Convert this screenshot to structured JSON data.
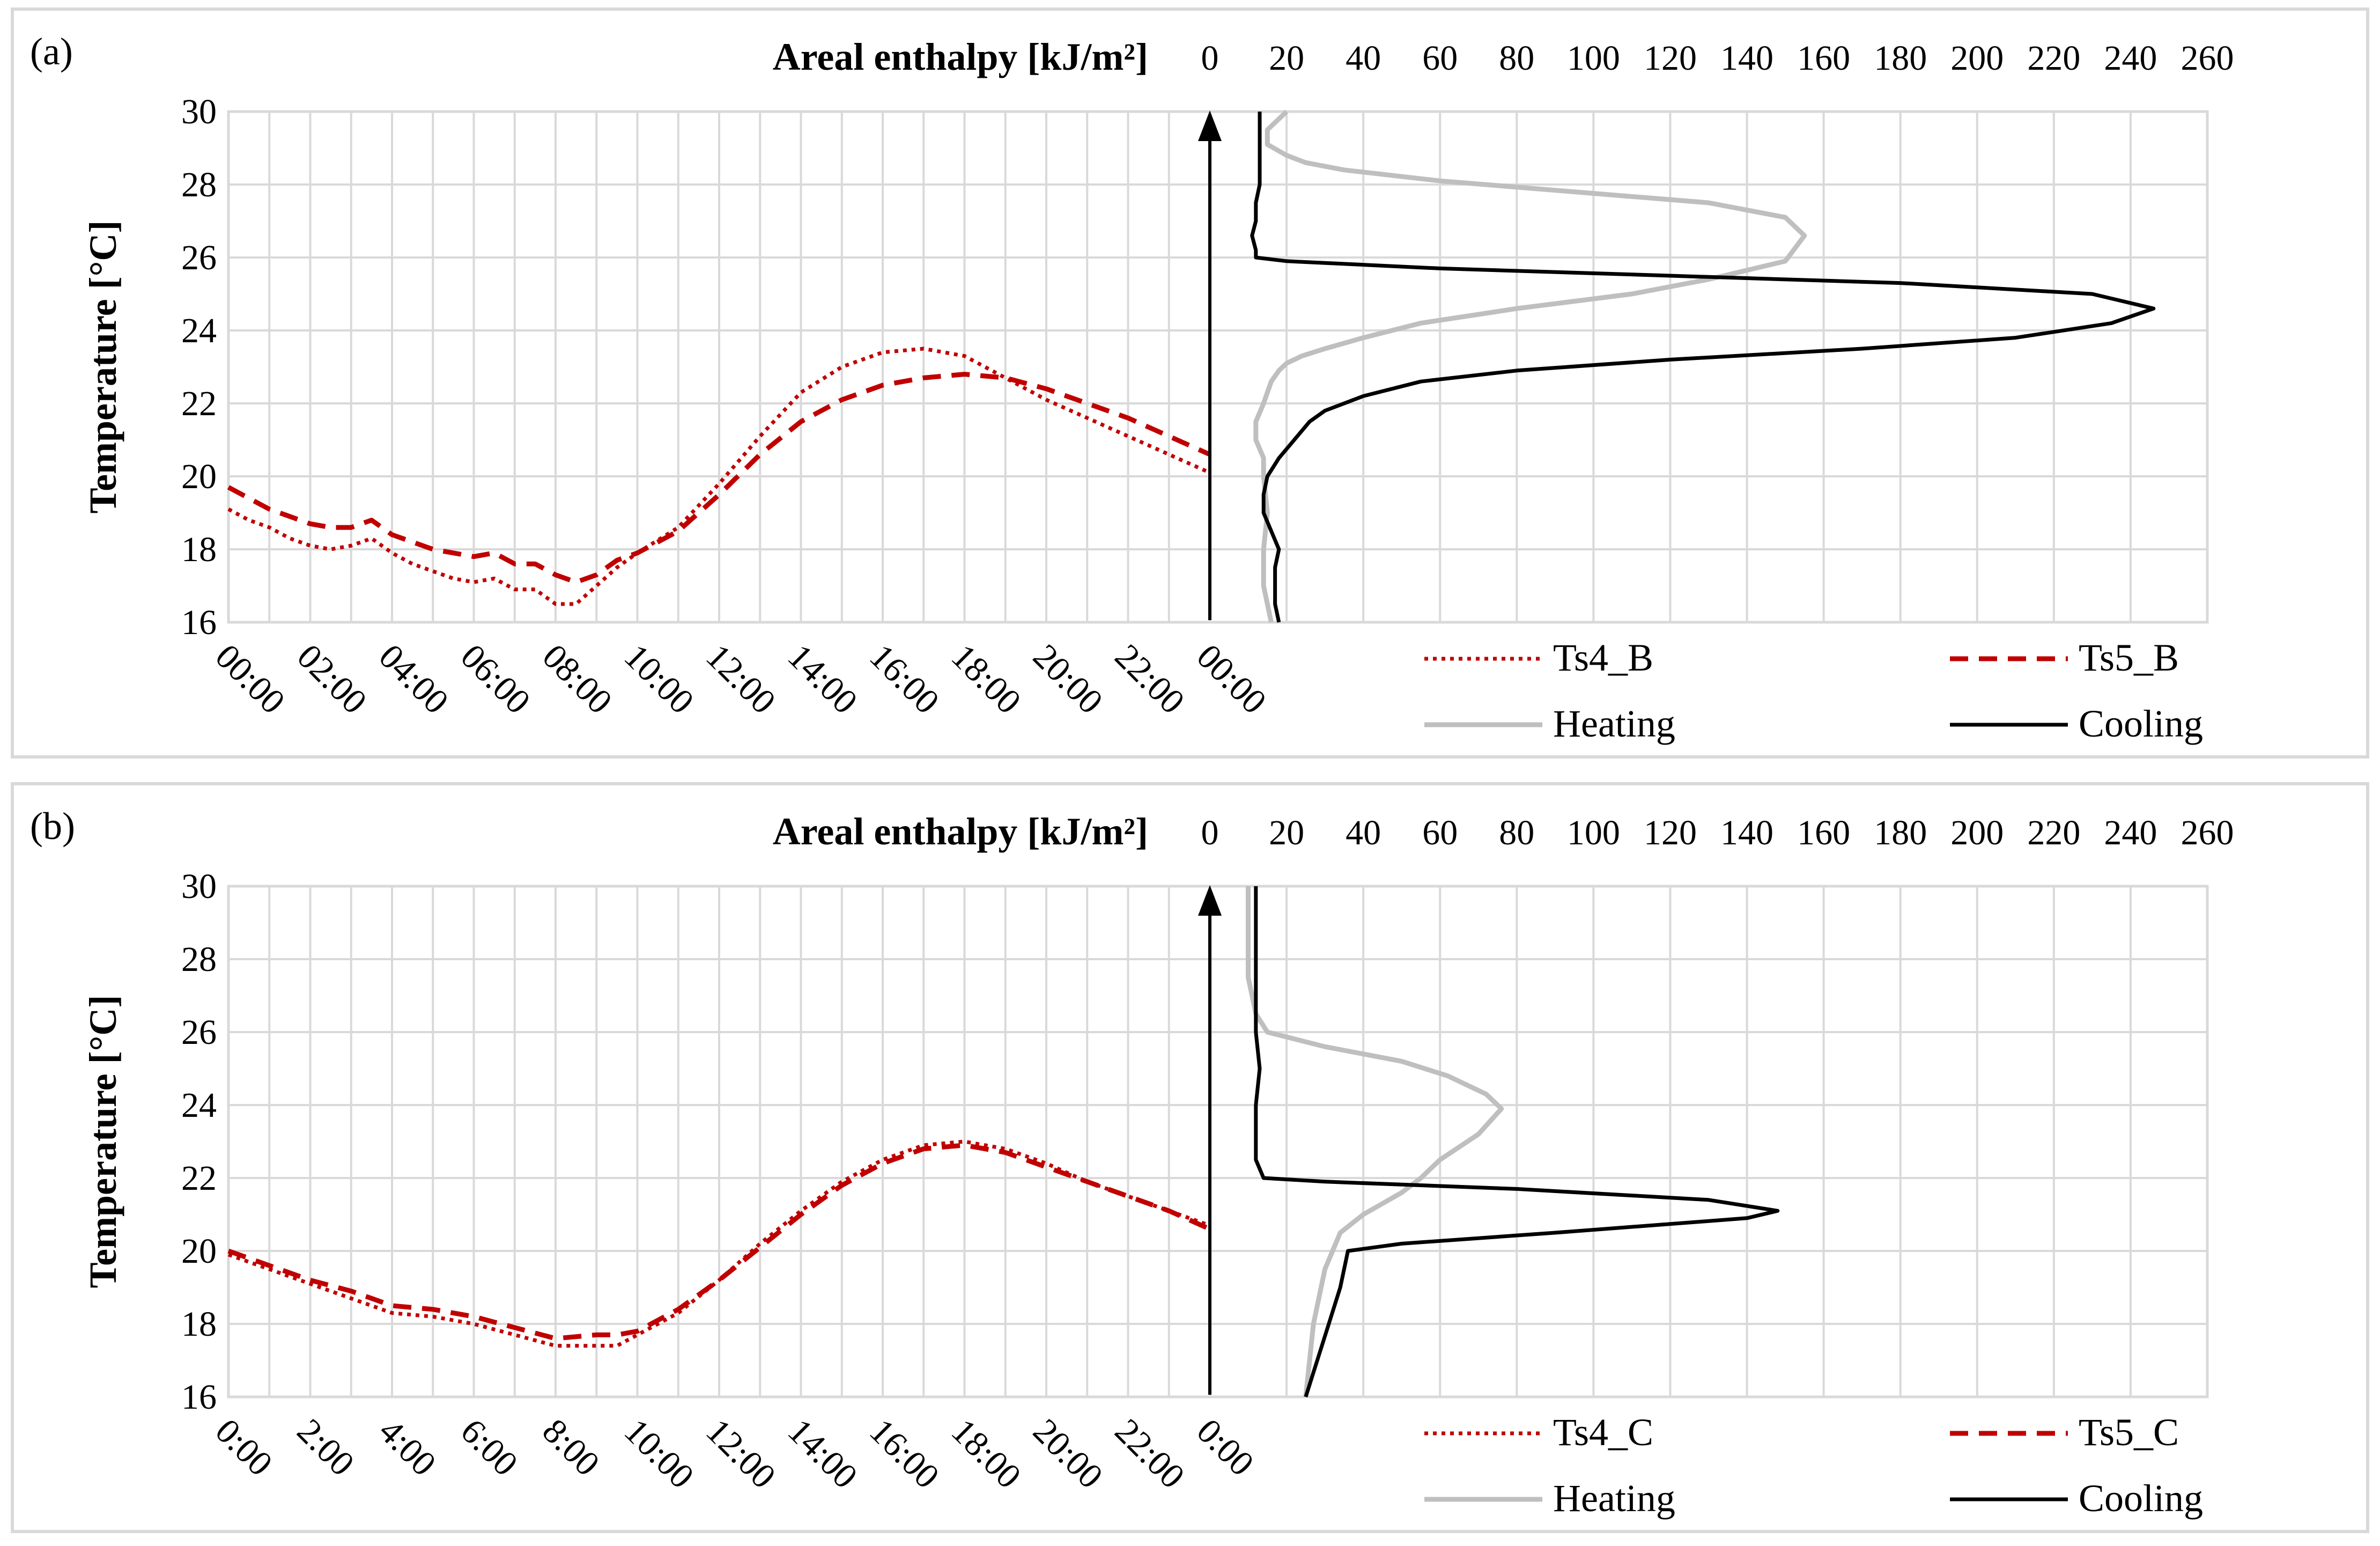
{
  "colors": {
    "ts4": "#c00000",
    "ts5": "#c00000",
    "heating": "#bfbfbf",
    "cooling": "#000000",
    "grid": "#d9d9d9"
  },
  "chart_data": [
    {
      "type": "line",
      "panel_label": "(a)",
      "ylabel": "Temperature [°C]",
      "ylim": [
        16,
        30
      ],
      "y_ticks": [
        "16",
        "18",
        "20",
        "22",
        "24",
        "26",
        "28",
        "30"
      ],
      "x_ticks": [
        "00:00",
        "02:00",
        "04:00",
        "06:00",
        "08:00",
        "10:00",
        "12:00",
        "14:00",
        "16:00",
        "18:00",
        "20:00",
        "22:00",
        "00:00"
      ],
      "enthalpy_label": "Areal enthalpy [kJ/m²]",
      "enthalpy_ticks": [
        "0",
        "20",
        "40",
        "60",
        "80",
        "100",
        "120",
        "140",
        "160",
        "180",
        "200",
        "220",
        "240",
        "260"
      ],
      "enthalpy_lim": [
        0,
        260
      ],
      "legend": [
        "Ts4_B",
        "Ts5_B",
        "Heating",
        "Cooling"
      ],
      "series": [
        {
          "name": "Ts4_B",
          "style": "dotted",
          "x": [
            0,
            0.5,
            1,
            1.5,
            2,
            2.5,
            3,
            3.5,
            4,
            4.5,
            5,
            5.5,
            6,
            6.5,
            7,
            7.5,
            8,
            8.5,
            9,
            9.5,
            10,
            11,
            12,
            13,
            14,
            15,
            16,
            17,
            18,
            19,
            20,
            21,
            22,
            23,
            24
          ],
          "y": [
            19.1,
            18.8,
            18.6,
            18.3,
            18.1,
            18.0,
            18.1,
            18.3,
            17.9,
            17.6,
            17.4,
            17.2,
            17.1,
            17.2,
            16.9,
            16.9,
            16.5,
            16.5,
            17.0,
            17.5,
            17.9,
            18.6,
            19.8,
            21.1,
            22.3,
            23.0,
            23.4,
            23.5,
            23.3,
            22.7,
            22.1,
            21.6,
            21.1,
            20.6,
            20.1
          ]
        },
        {
          "name": "Ts5_B",
          "style": "dashed",
          "x": [
            0,
            0.5,
            1,
            1.5,
            2,
            2.5,
            3,
            3.5,
            4,
            4.5,
            5,
            5.5,
            6,
            6.5,
            7,
            7.5,
            8,
            8.5,
            9,
            9.5,
            10,
            11,
            12,
            13,
            14,
            15,
            16,
            17,
            18,
            19,
            20,
            21,
            22,
            23,
            24
          ],
          "y": [
            19.7,
            19.4,
            19.1,
            18.9,
            18.7,
            18.6,
            18.6,
            18.8,
            18.4,
            18.2,
            18.0,
            17.9,
            17.8,
            17.9,
            17.6,
            17.6,
            17.3,
            17.1,
            17.3,
            17.7,
            17.9,
            18.5,
            19.5,
            20.6,
            21.5,
            22.1,
            22.5,
            22.7,
            22.8,
            22.7,
            22.4,
            22.0,
            21.6,
            21.1,
            20.6
          ]
        },
        {
          "name": "Heating",
          "axis": "enthalpy",
          "x": [
            16,
            14,
            14,
            15,
            14,
            14,
            12,
            12,
            14,
            15,
            16,
            18,
            20,
            24,
            30,
            40,
            55,
            80,
            110,
            130,
            150,
            155,
            150,
            130,
            95,
            60,
            35,
            25,
            20,
            15,
            15,
            18,
            20
          ],
          "y": [
            16,
            17,
            18,
            19,
            20,
            20.5,
            21,
            21.5,
            22,
            22.3,
            22.6,
            22.9,
            23.1,
            23.3,
            23.5,
            23.8,
            24.2,
            24.6,
            25.0,
            25.4,
            25.9,
            26.6,
            27.1,
            27.5,
            27.8,
            28.1,
            28.4,
            28.6,
            28.8,
            29.1,
            29.5,
            29.8,
            30
          ]
        },
        {
          "name": "Cooling",
          "axis": "enthalpy",
          "x": [
            18,
            17,
            17,
            17,
            18,
            16,
            14,
            14,
            15,
            18,
            22,
            26,
            30,
            40,
            55,
            80,
            120,
            170,
            210,
            235,
            246,
            230,
            180,
            120,
            60,
            20,
            12,
            12,
            11,
            12,
            12,
            13,
            13,
            13,
            13,
            13,
            13
          ],
          "y": [
            16,
            16.5,
            17,
            17.5,
            18,
            18.5,
            19,
            19.5,
            20,
            20.5,
            21,
            21.5,
            21.8,
            22.2,
            22.6,
            22.9,
            23.2,
            23.5,
            23.8,
            24.2,
            24.6,
            25.0,
            25.3,
            25.5,
            25.7,
            25.9,
            26.0,
            26.2,
            26.6,
            27.0,
            27.5,
            28.0,
            28.5,
            29.0,
            29.5,
            29.8,
            30
          ]
        }
      ]
    },
    {
      "type": "line",
      "panel_label": "(b)",
      "ylabel": "Temperature [°C]",
      "ylim": [
        16,
        30
      ],
      "y_ticks": [
        "16",
        "18",
        "20",
        "22",
        "24",
        "26",
        "28",
        "30"
      ],
      "x_ticks": [
        "0:00",
        "2:00",
        "4:00",
        "6:00",
        "8:00",
        "10:00",
        "12:00",
        "14:00",
        "16:00",
        "18:00",
        "20:00",
        "22:00",
        "0:00"
      ],
      "enthalpy_label": "Areal enthalpy [kJ/m²]",
      "enthalpy_ticks": [
        "0",
        "20",
        "40",
        "60",
        "80",
        "100",
        "120",
        "140",
        "160",
        "180",
        "200",
        "220",
        "240",
        "260"
      ],
      "enthalpy_lim": [
        0,
        260
      ],
      "legend": [
        "Ts4_C",
        "Ts5_C",
        "Heating",
        "Cooling"
      ],
      "series": [
        {
          "name": "Ts4_C",
          "style": "dotted",
          "x": [
            0,
            1,
            2,
            3,
            4,
            5,
            6,
            7,
            8,
            9,
            9.5,
            10,
            11,
            12,
            13,
            14,
            15,
            16,
            17,
            18,
            19,
            20,
            21,
            22,
            23,
            24
          ],
          "y": [
            19.9,
            19.5,
            19.1,
            18.7,
            18.3,
            18.2,
            18.0,
            17.7,
            17.4,
            17.4,
            17.4,
            17.7,
            18.3,
            19.2,
            20.2,
            21.1,
            21.9,
            22.5,
            22.9,
            23.0,
            22.8,
            22.4,
            21.9,
            21.5,
            21.1,
            20.7
          ]
        },
        {
          "name": "Ts5_C",
          "style": "dashed",
          "x": [
            0,
            1,
            2,
            3,
            4,
            5,
            6,
            7,
            8,
            9,
            9.5,
            10,
            11,
            12,
            13,
            14,
            15,
            16,
            17,
            18,
            19,
            20,
            21,
            22,
            23,
            24
          ],
          "y": [
            20.0,
            19.6,
            19.2,
            18.9,
            18.5,
            18.4,
            18.2,
            17.9,
            17.6,
            17.7,
            17.7,
            17.8,
            18.4,
            19.2,
            20.1,
            21.0,
            21.8,
            22.4,
            22.8,
            22.9,
            22.7,
            22.3,
            21.9,
            21.5,
            21.1,
            20.6
          ]
        },
        {
          "name": "Heating",
          "axis": "enthalpy",
          "x": [
            25,
            27,
            30,
            34,
            40,
            45,
            50,
            55,
            60,
            70,
            76,
            72,
            62,
            50,
            30,
            15,
            12,
            11,
            10,
            10,
            10,
            10
          ],
          "y": [
            16,
            18,
            19.5,
            20.5,
            21.0,
            21.3,
            21.6,
            22.0,
            22.5,
            23.2,
            23.9,
            24.3,
            24.8,
            25.2,
            25.6,
            26.0,
            26.5,
            27.0,
            27.5,
            28.0,
            29.0,
            30
          ]
        },
        {
          "name": "Cooling",
          "axis": "enthalpy",
          "x": [
            25,
            28,
            31,
            34,
            36,
            50,
            90,
            140,
            148,
            130,
            80,
            30,
            14,
            12,
            12,
            12,
            13,
            12,
            12,
            12,
            12
          ],
          "y": [
            16,
            17,
            18,
            19,
            20,
            20.2,
            20.5,
            20.9,
            21.1,
            21.4,
            21.7,
            21.9,
            22.0,
            22.5,
            23.0,
            24.0,
            25.0,
            26.0,
            27.0,
            28.0,
            30
          ]
        }
      ]
    }
  ]
}
